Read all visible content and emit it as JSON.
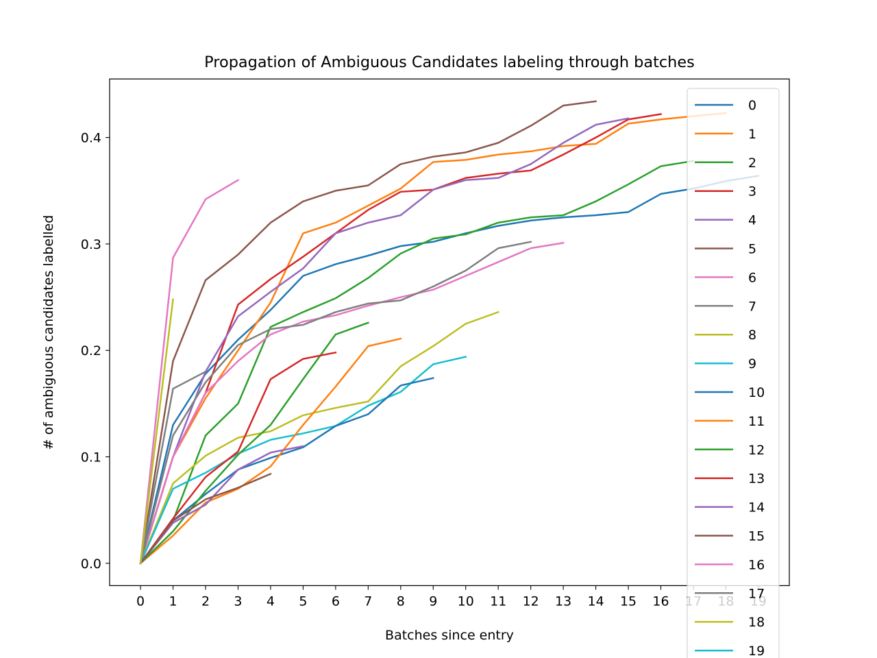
{
  "chart_data": {
    "type": "line",
    "title": "Propagation of Ambiguous Candidates labeling through batches",
    "xlabel": "Batches since entry",
    "ylabel": "# of ambiguous candidates labelled",
    "xlim": [
      -0.95,
      19.95
    ],
    "ylim": [
      -0.021,
      0.455
    ],
    "xticks": [
      0,
      1,
      2,
      3,
      4,
      5,
      6,
      7,
      8,
      9,
      10,
      11,
      12,
      13,
      14,
      15,
      16,
      17,
      18,
      19
    ],
    "yticks": [
      0.0,
      0.1,
      0.2,
      0.3,
      0.4
    ],
    "ytick_labels": [
      "0.0",
      "0.1",
      "0.2",
      "0.3",
      "0.4"
    ],
    "grid": false,
    "legend_position": "right, overflowing the plot",
    "series": [
      {
        "name": "0",
        "color": "#1f77b4",
        "values": [
          0,
          0.13,
          0.178,
          0.21,
          0.238,
          0.27,
          0.281,
          0.289,
          0.298,
          0.302,
          0.31,
          0.317,
          0.322,
          0.325,
          0.327,
          0.33,
          0.347,
          0.352,
          0.359,
          0.364
        ]
      },
      {
        "name": "1",
        "color": "#ff7f0e",
        "values": [
          0,
          0.1,
          0.155,
          0.2,
          0.245,
          0.31,
          0.32,
          0.336,
          0.352,
          0.377,
          0.379,
          0.384,
          0.387,
          0.392,
          0.394,
          0.413,
          0.417,
          0.42,
          0.423
        ]
      },
      {
        "name": "2",
        "color": "#2ca02c",
        "values": [
          0,
          0.04,
          0.12,
          0.15,
          0.222,
          0.236,
          0.249,
          0.268,
          0.291,
          0.305,
          0.309,
          0.32,
          0.325,
          0.327,
          0.34,
          0.356,
          0.373,
          0.378
        ]
      },
      {
        "name": "3",
        "color": "#d62728",
        "values": [
          0,
          0.1,
          0.16,
          0.243,
          0.267,
          0.288,
          0.31,
          0.332,
          0.349,
          0.351,
          0.362,
          0.366,
          0.369,
          0.384,
          0.4,
          0.417,
          0.422
        ]
      },
      {
        "name": "4",
        "color": "#9467bd",
        "values": [
          0,
          0.1,
          0.18,
          0.232,
          0.255,
          0.277,
          0.31,
          0.32,
          0.327,
          0.351,
          0.36,
          0.362,
          0.375,
          0.395,
          0.412,
          0.418
        ]
      },
      {
        "name": "5",
        "color": "#8c564b",
        "values": [
          0,
          0.19,
          0.266,
          0.29,
          0.32,
          0.34,
          0.35,
          0.355,
          0.375,
          0.382,
          0.386,
          0.395,
          0.411,
          0.43,
          0.434
        ]
      },
      {
        "name": "6",
        "color": "#e377c2",
        "values": [
          0,
          0.1,
          0.16,
          0.19,
          0.215,
          0.227,
          0.233,
          0.242,
          0.25,
          0.257,
          0.27,
          0.283,
          0.296,
          0.301
        ]
      },
      {
        "name": "7",
        "color": "#7f7f7f",
        "values": [
          0,
          0.12,
          0.17,
          0.205,
          0.22,
          0.224,
          0.236,
          0.244,
          0.247,
          0.26,
          0.275,
          0.296,
          0.302
        ]
      },
      {
        "name": "8",
        "color": "#bcbd22",
        "values": [
          0,
          0.075,
          0.101,
          0.118,
          0.124,
          0.139,
          0.146,
          0.152,
          0.185,
          0.204,
          0.225,
          0.236
        ]
      },
      {
        "name": "9",
        "color": "#17becf",
        "values": [
          0,
          0.07,
          0.085,
          0.103,
          0.116,
          0.122,
          0.129,
          0.148,
          0.161,
          0.187,
          0.194
        ]
      },
      {
        "name": "10",
        "color": "#1f77b4",
        "values": [
          0,
          0.04,
          0.065,
          0.088,
          0.099,
          0.109,
          0.129,
          0.14,
          0.167,
          0.174
        ]
      },
      {
        "name": "11",
        "color": "#ff7f0e",
        "values": [
          0,
          0.026,
          0.057,
          0.07,
          0.091,
          0.13,
          0.166,
          0.204,
          0.211
        ]
      },
      {
        "name": "12",
        "color": "#2ca02c",
        "values": [
          0,
          0.03,
          0.068,
          0.102,
          0.13,
          0.173,
          0.215,
          0.226
        ]
      },
      {
        "name": "13",
        "color": "#d62728",
        "values": [
          0,
          0.042,
          0.081,
          0.105,
          0.173,
          0.192,
          0.198
        ]
      },
      {
        "name": "14",
        "color": "#9467bd",
        "values": [
          0,
          0.038,
          0.055,
          0.088,
          0.104,
          0.11
        ]
      },
      {
        "name": "15",
        "color": "#8c564b",
        "values": [
          0,
          0.04,
          0.06,
          0.071,
          0.084
        ]
      },
      {
        "name": "16",
        "color": "#e377c2",
        "values": [
          0,
          0.287,
          0.342,
          0.36
        ]
      },
      {
        "name": "17",
        "color": "#7f7f7f",
        "values": [
          0,
          0.164,
          0.18
        ]
      },
      {
        "name": "18",
        "color": "#bcbd22",
        "values": [
          0,
          0.248
        ]
      },
      {
        "name": "19",
        "color": "#17becf",
        "values": [
          0
        ]
      }
    ]
  }
}
